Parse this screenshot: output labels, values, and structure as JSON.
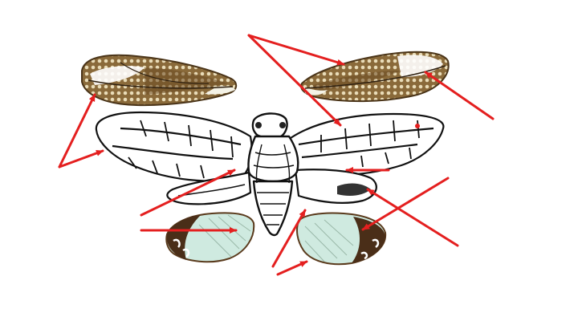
{
  "figure": {
    "subject": "cicada",
    "background": "#ffffff",
    "colors": {
      "arrow": "#e41f1f",
      "outline": "#111111",
      "forewing_fill": "#efe7cf",
      "forewing_brown": "#7a5a30",
      "forewing_dark": "#3c2a16",
      "forewing_light_patch": "#ffffff",
      "hindwing_fill": "#cfeae0",
      "hindwing_brown": "#4a2e18",
      "body_fill": "#ffffff"
    }
  }
}
